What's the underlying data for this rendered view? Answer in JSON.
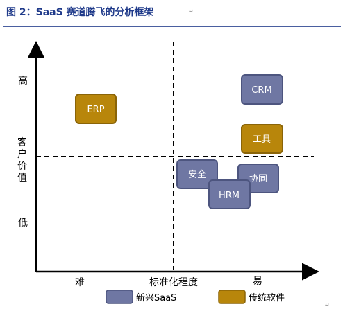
{
  "title": "图 2：SaaS 赛道腾飞的分析框架",
  "y_axis": {
    "label_chars": [
      "客",
      "户",
      "价",
      "值"
    ],
    "high": "高",
    "low": "低"
  },
  "x_axis": {
    "label": "标准化程度",
    "low": "难",
    "high": "易"
  },
  "boxes": [
    {
      "id": "erp",
      "label": "ERP",
      "category": "traditional"
    },
    {
      "id": "crm",
      "label": "CRM",
      "category": "new"
    },
    {
      "id": "tools",
      "label": "工具",
      "category": "traditional"
    },
    {
      "id": "security",
      "label": "安全",
      "category": "new"
    },
    {
      "id": "collab",
      "label": "协同",
      "category": "new"
    },
    {
      "id": "hrm",
      "label": "HRM",
      "category": "new"
    }
  ],
  "legend": {
    "new": "新兴SaaS",
    "traditional": "传统软件"
  },
  "colors": {
    "new": "#6f77a3",
    "new_border": "#4d557f",
    "traditional": "#b8860b",
    "traditional_border": "#8a6408",
    "title": "#1f3a8a"
  }
}
